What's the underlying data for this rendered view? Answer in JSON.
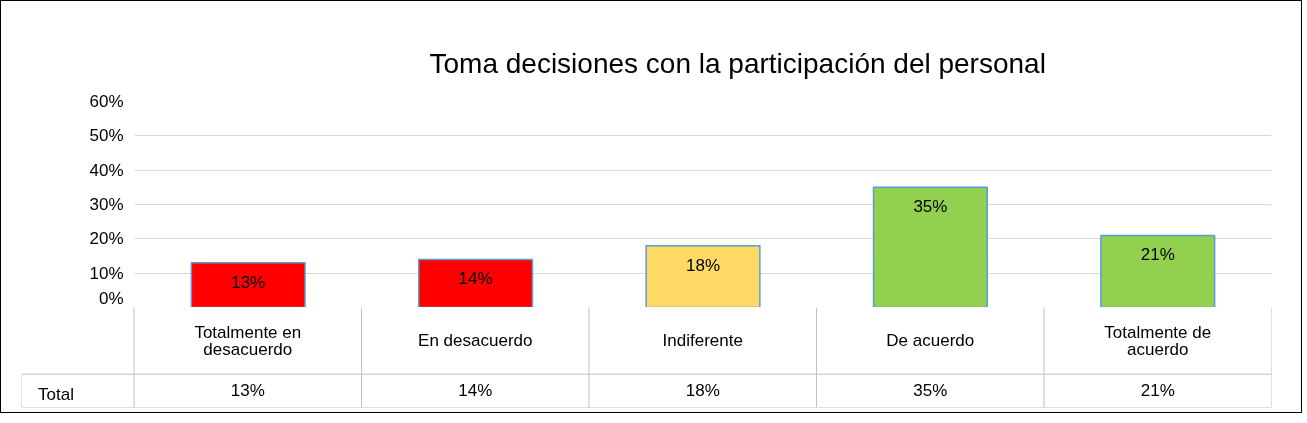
{
  "chart_data": {
    "type": "bar",
    "title": "Toma decisiones con la participación del personal",
    "categories": [
      "Totalmente en desacuerdo",
      "En desacuerdo",
      "Indiferente",
      "De acuerdo",
      "Totalmente de acuerdo"
    ],
    "series": [
      {
        "name": "Total",
        "color": "#5b9bd5",
        "colors": [
          "#ff0000",
          "#ff0000",
          "#ffd966",
          "#92d050",
          "#92d050"
        ],
        "values": [
          13,
          14,
          18,
          35,
          21
        ],
        "value_labels": [
          "13%",
          "14%",
          "18%",
          "35%",
          "21%"
        ]
      }
    ],
    "ylim": [
      0,
      60
    ],
    "yticks": [
      {
        "value": 0,
        "label": "0%"
      },
      {
        "value": 10,
        "label": "10%"
      },
      {
        "value": 20,
        "label": "20%"
      },
      {
        "value": 30,
        "label": "30%"
      },
      {
        "value": 40,
        "label": "40%"
      },
      {
        "value": 50,
        "label": "50%"
      },
      {
        "value": 60,
        "label": "60%"
      }
    ],
    "grid": "y",
    "legend": "bottom"
  }
}
